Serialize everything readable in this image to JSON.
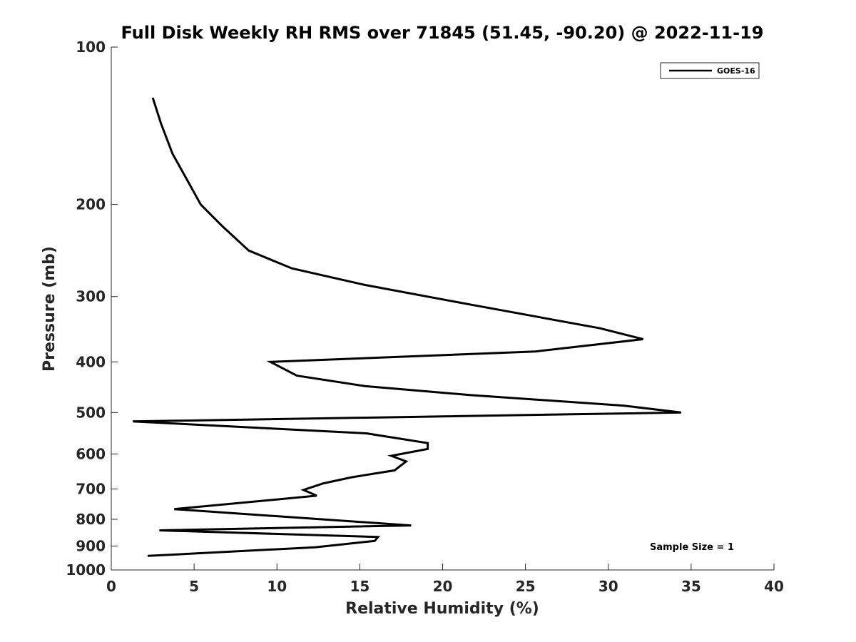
{
  "chart_data": {
    "type": "line",
    "title": "Full Disk Weekly RH RMS over 71845 (51.45, -90.20) @ 2022-11-19",
    "xlabel": "Relative Humidity (%)",
    "ylabel": "Pressure (mb)",
    "xlim": [
      0,
      40
    ],
    "ylim": [
      100,
      1000
    ],
    "y_scale": "log",
    "y_reversed": true,
    "x_ticks": [
      0,
      5,
      10,
      15,
      20,
      25,
      30,
      35,
      40
    ],
    "y_ticks": [
      100,
      200,
      300,
      400,
      500,
      600,
      700,
      800,
      900,
      1000
    ],
    "grid": false,
    "legend_position": "top-right",
    "annotation": "Sample Size = 1",
    "series": [
      {
        "name": "GOES-16",
        "color": "#000000",
        "points": [
          {
            "x": 2.5,
            "y": 125
          },
          {
            "x": 3.0,
            "y": 140
          },
          {
            "x": 3.7,
            "y": 160
          },
          {
            "x": 4.6,
            "y": 180
          },
          {
            "x": 5.4,
            "y": 200
          },
          {
            "x": 6.7,
            "y": 220
          },
          {
            "x": 8.3,
            "y": 245
          },
          {
            "x": 10.9,
            "y": 265
          },
          {
            "x": 15.3,
            "y": 285
          },
          {
            "x": 21.5,
            "y": 310
          },
          {
            "x": 29.5,
            "y": 345
          },
          {
            "x": 32.1,
            "y": 362
          },
          {
            "x": 25.6,
            "y": 382
          },
          {
            "x": 9.6,
            "y": 400
          },
          {
            "x": 11.2,
            "y": 425
          },
          {
            "x": 15.3,
            "y": 445
          },
          {
            "x": 21.7,
            "y": 463
          },
          {
            "x": 30.9,
            "y": 485
          },
          {
            "x": 34.4,
            "y": 500
          },
          {
            "x": 1.3,
            "y": 520
          },
          {
            "x": 15.4,
            "y": 548
          },
          {
            "x": 19.1,
            "y": 572
          },
          {
            "x": 19.1,
            "y": 587
          },
          {
            "x": 16.9,
            "y": 605
          },
          {
            "x": 17.8,
            "y": 620
          },
          {
            "x": 17.1,
            "y": 645
          },
          {
            "x": 14.5,
            "y": 665
          },
          {
            "x": 12.8,
            "y": 683
          },
          {
            "x": 11.6,
            "y": 703
          },
          {
            "x": 12.4,
            "y": 721
          },
          {
            "x": 3.8,
            "y": 765
          },
          {
            "x": 18.1,
            "y": 822
          },
          {
            "x": 2.9,
            "y": 840
          },
          {
            "x": 16.1,
            "y": 865
          },
          {
            "x": 15.9,
            "y": 880
          },
          {
            "x": 12.3,
            "y": 905
          },
          {
            "x": 2.2,
            "y": 940
          }
        ]
      }
    ]
  }
}
